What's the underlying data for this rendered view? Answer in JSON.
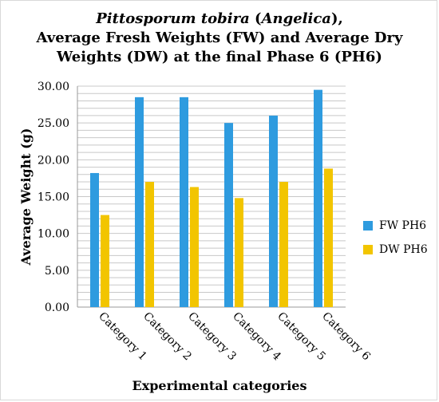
{
  "chart_data": {
    "type": "bar",
    "title_line1_italic": "Pittosporum tobira",
    "title_line1_paren_open": " (",
    "title_line1_italic2": "Angelica",
    "title_line1_paren_close": "),",
    "title_line2": "Average Fresh Weights (FW) and Average Dry",
    "title_line3": "Weights (DW) at the final Phase 6 (PH6)",
    "xlabel": "Experimental categories",
    "ylabel": "Average Weight (g)",
    "ylim": [
      0,
      30
    ],
    "yticks": [
      "0.00",
      "5.00",
      "10.00",
      "15.00",
      "20.00",
      "25.00",
      "30.00"
    ],
    "grid": true,
    "legend_position": "right",
    "categories": [
      "Category 1",
      "Category 2",
      "Category 3",
      "Category 4",
      "Category 5",
      "Category 6"
    ],
    "series": [
      {
        "name": "FW PH6",
        "color": "#2e9bdf",
        "values": [
          18.2,
          28.5,
          28.5,
          25.0,
          26.0,
          29.5
        ]
      },
      {
        "name": "DW PH6",
        "color": "#f2c500",
        "values": [
          12.5,
          17.0,
          16.3,
          14.8,
          17.0,
          18.8
        ]
      }
    ]
  }
}
